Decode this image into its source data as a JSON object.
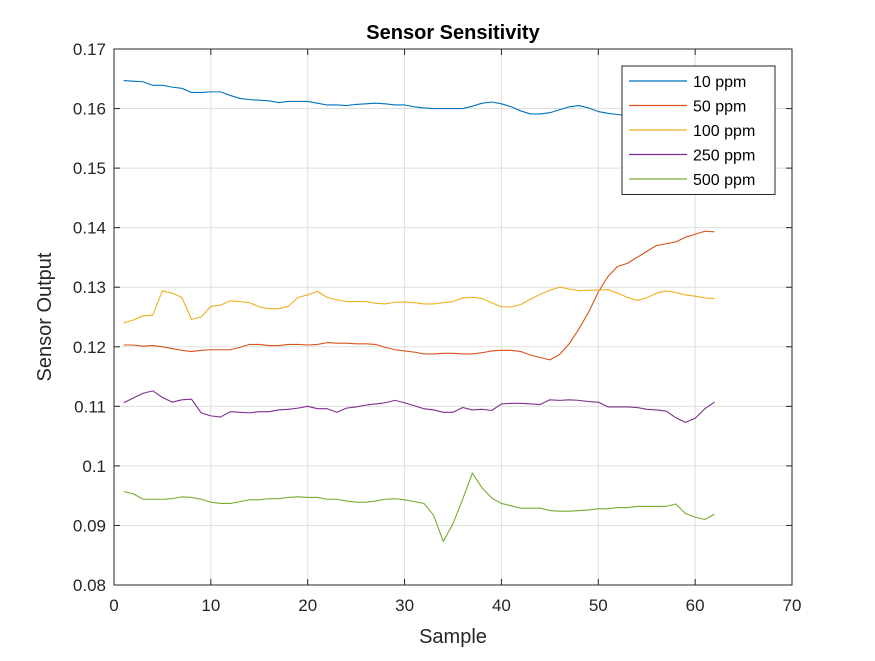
{
  "chart_data": {
    "type": "line",
    "title": "Sensor Sensitivity",
    "xlabel": "Sample",
    "ylabel": "Sensor Output",
    "xlim": [
      0,
      70
    ],
    "ylim": [
      0.08,
      0.17
    ],
    "xticks": [
      0,
      10,
      20,
      30,
      40,
      50,
      60,
      70
    ],
    "yticks": [
      0.08,
      0.09,
      0.1,
      0.11,
      0.12,
      0.13,
      0.14,
      0.15,
      0.16,
      0.17
    ],
    "xtick_labels": [
      "0",
      "10",
      "20",
      "30",
      "40",
      "50",
      "60",
      "70"
    ],
    "ytick_labels": [
      "0.08",
      "0.09",
      "0.1",
      "0.11",
      "0.12",
      "0.13",
      "0.14",
      "0.15",
      "0.16",
      "0.17"
    ],
    "grid": true,
    "legend_position": "top-right",
    "x": [
      1,
      2,
      3,
      4,
      5,
      6,
      7,
      8,
      9,
      10,
      11,
      12,
      13,
      14,
      15,
      16,
      17,
      18,
      19,
      20,
      21,
      22,
      23,
      24,
      25,
      26,
      27,
      28,
      29,
      30,
      31,
      32,
      33,
      34,
      35,
      36,
      37,
      38,
      39,
      40,
      41,
      42,
      43,
      44,
      45,
      46,
      47,
      48,
      49,
      50,
      51,
      52,
      53,
      54,
      55,
      56,
      57,
      58,
      59,
      60,
      61,
      62
    ],
    "series": [
      {
        "name": "10 ppm",
        "color": "#0072BD",
        "values": [
          0.1647,
          0.1646,
          0.1645,
          0.1639,
          0.1639,
          0.1636,
          0.1634,
          0.1627,
          0.1627,
          0.1628,
          0.1628,
          0.1622,
          0.1617,
          0.1615,
          0.1614,
          0.1613,
          0.161,
          0.1612,
          0.1612,
          0.1612,
          0.1609,
          0.1606,
          0.1606,
          0.1605,
          0.1607,
          0.1608,
          0.1609,
          0.1608,
          0.1606,
          0.1606,
          0.1603,
          0.1601,
          0.16,
          0.16,
          0.16,
          0.16,
          0.1604,
          0.1609,
          0.1611,
          0.1608,
          0.1603,
          0.1596,
          0.1591,
          0.1591,
          0.1593,
          0.1598,
          0.1603,
          0.1605,
          0.1601,
          0.1595,
          0.1592,
          0.159,
          0.1588,
          0.1587,
          0.1586,
          0.1585,
          0.1585,
          0.1584,
          0.1583,
          0.1582,
          0.1582,
          0.1581
        ]
      },
      {
        "name": "50 ppm",
        "color": "#D95319",
        "values": [
          0.1203,
          0.1203,
          0.1201,
          0.1202,
          0.12,
          0.1197,
          0.1194,
          0.1192,
          0.1194,
          0.1195,
          0.1195,
          0.1195,
          0.1199,
          0.1204,
          0.1204,
          0.1202,
          0.1202,
          0.1204,
          0.1204,
          0.1203,
          0.1204,
          0.1207,
          0.1206,
          0.1206,
          0.1205,
          0.1205,
          0.1204,
          0.1199,
          0.1195,
          0.1193,
          0.1191,
          0.1188,
          0.1188,
          0.1189,
          0.1189,
          0.1188,
          0.1188,
          0.119,
          0.1193,
          0.1194,
          0.1194,
          0.1192,
          0.1186,
          0.1182,
          0.1178,
          0.1187,
          0.1205,
          0.123,
          0.1258,
          0.1292,
          0.1318,
          0.1335,
          0.134,
          0.135,
          0.136,
          0.137,
          0.1373,
          0.1376,
          0.1384,
          0.1389,
          0.1394,
          0.1393
        ]
      },
      {
        "name": "100 ppm",
        "color": "#EDB120",
        "values": [
          0.124,
          0.1245,
          0.1252,
          0.1253,
          0.1294,
          0.129,
          0.1283,
          0.1246,
          0.125,
          0.1268,
          0.127,
          0.1277,
          0.1276,
          0.1274,
          0.1267,
          0.1264,
          0.1264,
          0.1268,
          0.1283,
          0.1287,
          0.1293,
          0.1283,
          0.1279,
          0.1276,
          0.1276,
          0.1276,
          0.1273,
          0.1272,
          0.1275,
          0.1275,
          0.1274,
          0.1272,
          0.1272,
          0.1274,
          0.1276,
          0.1282,
          0.1283,
          0.1281,
          0.1274,
          0.1267,
          0.1267,
          0.1271,
          0.128,
          0.1288,
          0.1295,
          0.13,
          0.1297,
          0.1294,
          0.1295,
          0.1295,
          0.1296,
          0.129,
          0.1283,
          0.1278,
          0.1282,
          0.129,
          0.1294,
          0.1291,
          0.1287,
          0.1285,
          0.1282,
          0.1281
        ]
      },
      {
        "name": "250 ppm",
        "color": "#7E2F8E",
        "values": [
          0.1106,
          0.1114,
          0.1122,
          0.1126,
          0.1115,
          0.1107,
          0.1111,
          0.1112,
          0.1089,
          0.1084,
          0.1082,
          0.1091,
          0.109,
          0.1089,
          0.1091,
          0.1091,
          0.1094,
          0.1095,
          0.1097,
          0.11,
          0.1096,
          0.1096,
          0.109,
          0.1097,
          0.1099,
          0.1102,
          0.1104,
          0.1106,
          0.111,
          0.1106,
          0.1101,
          0.1096,
          0.1094,
          0.109,
          0.109,
          0.1098,
          0.1094,
          0.1095,
          0.1093,
          0.1104,
          0.1105,
          0.1105,
          0.1104,
          0.1103,
          0.1111,
          0.111,
          0.1111,
          0.111,
          0.1108,
          0.1107,
          0.1099,
          0.1099,
          0.1099,
          0.1098,
          0.1095,
          0.1094,
          0.1092,
          0.1081,
          0.1073,
          0.108,
          0.1096,
          0.1107
        ]
      },
      {
        "name": "500 ppm",
        "color": "#77AC30",
        "values": [
          0.0957,
          0.0953,
          0.0944,
          0.0944,
          0.0944,
          0.0945,
          0.0948,
          0.0947,
          0.0944,
          0.0939,
          0.0937,
          0.0937,
          0.094,
          0.0943,
          0.0943,
          0.0945,
          0.0945,
          0.0947,
          0.0948,
          0.0947,
          0.0947,
          0.0944,
          0.0944,
          0.0941,
          0.0939,
          0.0939,
          0.0941,
          0.0944,
          0.0945,
          0.0943,
          0.094,
          0.0937,
          0.0917,
          0.0873,
          0.0903,
          0.0944,
          0.0988,
          0.0963,
          0.0946,
          0.0937,
          0.0933,
          0.0929,
          0.0929,
          0.0929,
          0.0925,
          0.0924,
          0.0924,
          0.0925,
          0.0926,
          0.0928,
          0.0928,
          0.093,
          0.093,
          0.0932,
          0.0932,
          0.0932,
          0.0932,
          0.0936,
          0.092,
          0.0914,
          0.091,
          0.0919
        ]
      }
    ]
  }
}
